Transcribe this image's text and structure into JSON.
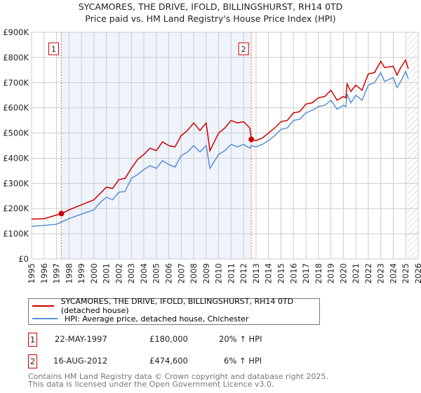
{
  "chart_data": {
    "type": "line",
    "title": "SYCAMORES, THE DRIVE, IFOLD, BILLINGSHURST, RH14 0TD",
    "subtitle": "Price paid vs. HM Land Registry's House Price Index (HPI)",
    "xlim": [
      1995,
      2026
    ],
    "ylim": [
      0,
      900000
    ],
    "x_ticks": [
      "1995",
      "1996",
      "1997",
      "1998",
      "1999",
      "2000",
      "2001",
      "2002",
      "2003",
      "2004",
      "2005",
      "2006",
      "2007",
      "2008",
      "2009",
      "2010",
      "2011",
      "2012",
      "2013",
      "2014",
      "2015",
      "2016",
      "2017",
      "2018",
      "2019",
      "2020",
      "2021",
      "2022",
      "2023",
      "2024",
      "2025",
      "2026"
    ],
    "y_ticks": [
      {
        "v": 0,
        "label": "£0"
      },
      {
        "v": 100000,
        "label": "£100K"
      },
      {
        "v": 200000,
        "label": "£200K"
      },
      {
        "v": 300000,
        "label": "£300K"
      },
      {
        "v": 400000,
        "label": "£400K"
      },
      {
        "v": 500000,
        "label": "£500K"
      },
      {
        "v": 600000,
        "label": "£600K"
      },
      {
        "v": 700000,
        "label": "£700K"
      },
      {
        "v": 800000,
        "label": "£800K"
      },
      {
        "v": 900000,
        "label": "£900K"
      }
    ],
    "grid": true,
    "shaded_period": [
      1997.39,
      2012.62
    ],
    "forecast_hatch_from": 2025.1,
    "series": [
      {
        "name": "SYCAMORES, THE DRIVE, IFOLD, BILLINGSHURST, RH14 0TD (detached house)",
        "color": "#cc0000",
        "x": [
          1995,
          1996,
          1997.39,
          1998,
          1999,
          2000,
          2000.5,
          2001,
          2001.5,
          2002,
          2002.5,
          2003,
          2003.5,
          2004,
          2004.5,
          2005,
          2005.5,
          2006,
          2006.5,
          2007,
          2007.5,
          2008,
          2008.5,
          2009,
          2009.3,
          2010,
          2010.5,
          2011,
          2011.5,
          2012,
          2012.5,
          2012.62,
          2013,
          2013.5,
          2014,
          2014.5,
          2015,
          2015.5,
          2016,
          2016.5,
          2017,
          2017.5,
          2018,
          2018.5,
          2019,
          2019.5,
          2020,
          2020.2,
          2020.3,
          2020.6,
          2021,
          2021.5,
          2022,
          2022.5,
          2023,
          2023.3,
          2024,
          2024.3,
          2024.6,
          2025,
          2025.2
        ],
        "y": [
          158000,
          160000,
          180000,
          195000,
          215000,
          235000,
          260000,
          285000,
          280000,
          315000,
          320000,
          360000,
          395000,
          415000,
          440000,
          430000,
          465000,
          450000,
          445000,
          490000,
          510000,
          540000,
          510000,
          540000,
          430000,
          500000,
          520000,
          550000,
          540000,
          545000,
          520000,
          474600,
          470000,
          480000,
          500000,
          520000,
          545000,
          550000,
          580000,
          585000,
          615000,
          620000,
          640000,
          645000,
          670000,
          630000,
          645000,
          640000,
          695000,
          665000,
          690000,
          670000,
          735000,
          740000,
          785000,
          760000,
          765000,
          730000,
          760000,
          790000,
          755000
        ]
      },
      {
        "name": "HPI: Average price, detached house, Chichester",
        "color": "#5b8fd4",
        "x": [
          1995,
          1996,
          1997,
          1998,
          1999,
          2000,
          2000.5,
          2001,
          2001.5,
          2002,
          2002.5,
          2003,
          2003.5,
          2004,
          2004.5,
          2005,
          2005.5,
          2006,
          2006.5,
          2007,
          2007.5,
          2008,
          2008.5,
          2009,
          2009.3,
          2010,
          2010.5,
          2011,
          2011.5,
          2012,
          2012.5,
          2012.62,
          2013,
          2013.5,
          2014,
          2014.5,
          2015,
          2015.5,
          2016,
          2016.5,
          2017,
          2017.5,
          2018,
          2018.5,
          2019,
          2019.5,
          2020,
          2020.2,
          2020.3,
          2020.6,
          2021,
          2021.5,
          2022,
          2022.5,
          2023,
          2023.3,
          2024,
          2024.3,
          2024.6,
          2025,
          2025.2
        ],
        "y": [
          130000,
          133000,
          138000,
          160000,
          178000,
          195000,
          225000,
          245000,
          235000,
          265000,
          268000,
          320000,
          335000,
          355000,
          370000,
          360000,
          390000,
          375000,
          365000,
          410000,
          425000,
          450000,
          425000,
          450000,
          360000,
          415000,
          430000,
          455000,
          445000,
          455000,
          440000,
          450000,
          445000,
          455000,
          470000,
          490000,
          515000,
          520000,
          550000,
          555000,
          580000,
          590000,
          605000,
          610000,
          630000,
          595000,
          610000,
          605000,
          655000,
          620000,
          650000,
          630000,
          690000,
          700000,
          740000,
          705000,
          720000,
          680000,
          705000,
          745000,
          715000
        ]
      }
    ],
    "markers": [
      {
        "id": "1",
        "x": 1997.39,
        "y": 180000
      },
      {
        "id": "2",
        "x": 2012.62,
        "y": 474600
      }
    ]
  },
  "transactions": [
    {
      "id": "1",
      "date": "22-MAY-1997",
      "price": "£180,000",
      "hpi": "20% ↑ HPI"
    },
    {
      "id": "2",
      "date": "16-AUG-2012",
      "price": "£474,600",
      "hpi": "6% ↑ HPI"
    }
  ],
  "footer": [
    "Contains HM Land Registry data © Crown copyright and database right 2025.",
    "This data is licensed under the Open Government Licence v3.0."
  ]
}
